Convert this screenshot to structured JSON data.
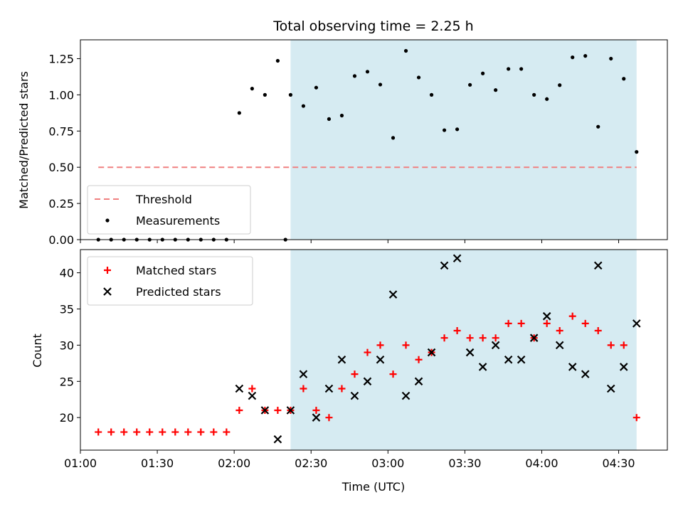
{
  "chart_data": {
    "type": "scatter",
    "title": "Total observing time = 2.25 h",
    "xlabel": "Time (UTC)",
    "x_ticks": [
      "01:00",
      "01:30",
      "02:00",
      "02:30",
      "03:00",
      "03:30",
      "04:00",
      "04:30"
    ],
    "x_tick_minutes": [
      60,
      90,
      120,
      150,
      180,
      210,
      240,
      270
    ],
    "xlim_minutes": [
      60,
      289
    ],
    "shaded_window_minutes": [
      142,
      277
    ],
    "shade_color": "#add8e6",
    "panels": [
      {
        "ylabel": "Matched/Predicted stars",
        "ylim": [
          0,
          1.38
        ],
        "y_ticks": [
          "0.00",
          "0.25",
          "0.50",
          "0.75",
          "1.00",
          "1.25"
        ],
        "y_tick_values": [
          0,
          0.25,
          0.5,
          0.75,
          1.0,
          1.25
        ],
        "legend": {
          "position": "lower-left"
        },
        "threshold": {
          "name": "Threshold",
          "value": 0.5,
          "x_range_minutes": [
            67,
            277
          ],
          "color": "#f08080"
        },
        "series": [
          {
            "name": "Measurements",
            "marker": "dot",
            "color": "#000000",
            "x": [
              67,
              72,
              77,
              82,
              87,
              92,
              97,
              102,
              107,
              112,
              117,
              122,
              127,
              132,
              137,
              140,
              142,
              147,
              152,
              157,
              162,
              167,
              172,
              177,
              182,
              187,
              192,
              197,
              202,
              207,
              212,
              217,
              222,
              227,
              232,
              237,
              242,
              247,
              252,
              257,
              262,
              267,
              272,
              277
            ],
            "y": [
              0,
              0,
              0,
              0,
              0,
              0,
              0,
              0,
              0,
              0,
              0,
              0.875,
              1.043,
              1.0,
              1.235,
              0,
              1.0,
              0.923,
              1.05,
              0.833,
              0.857,
              1.13,
              1.16,
              1.071,
              0.703,
              1.304,
              1.12,
              1.0,
              0.756,
              0.762,
              1.069,
              1.148,
              1.033,
              1.179,
              1.179,
              1.0,
              0.971,
              1.067,
              1.259,
              1.269,
              0.78,
              1.25,
              1.111,
              0.606
            ]
          }
        ]
      },
      {
        "ylabel": "Count",
        "ylim": [
          15.5,
          43.2
        ],
        "y_ticks": [
          "20",
          "25",
          "30",
          "35",
          "40"
        ],
        "y_tick_values": [
          20,
          25,
          30,
          35,
          40
        ],
        "legend": {
          "position": "upper-left"
        },
        "series": [
          {
            "name": "Matched stars",
            "marker": "plus",
            "color": "#ff0000",
            "x": [
              67,
              72,
              77,
              82,
              87,
              92,
              97,
              102,
              107,
              112,
              117,
              122,
              127,
              132,
              137,
              142,
              147,
              152,
              157,
              162,
              167,
              172,
              177,
              182,
              187,
              192,
              197,
              202,
              207,
              212,
              217,
              222,
              227,
              232,
              237,
              242,
              247,
              252,
              257,
              262,
              267,
              272,
              277
            ],
            "y": [
              18,
              18,
              18,
              18,
              18,
              18,
              18,
              18,
              18,
              18,
              18,
              21,
              24,
              21,
              21,
              21,
              24,
              21,
              20,
              24,
              26,
              29,
              30,
              26,
              30,
              28,
              29,
              31,
              32,
              31,
              31,
              31,
              33,
              33,
              31,
              33,
              32,
              34,
              33,
              32,
              30,
              30,
              20
            ]
          },
          {
            "name": "Predicted stars",
            "marker": "x",
            "color": "#000000",
            "x": [
              122,
              127,
              132,
              137,
              142,
              147,
              152,
              157,
              162,
              167,
              172,
              177,
              182,
              187,
              192,
              197,
              202,
              207,
              212,
              217,
              222,
              227,
              232,
              237,
              242,
              247,
              252,
              257,
              262,
              267,
              272,
              277
            ],
            "y": [
              24,
              23,
              21,
              17,
              21,
              26,
              20,
              24,
              28,
              23,
              25,
              28,
              37,
              23,
              25,
              29,
              41,
              42,
              29,
              27,
              30,
              28,
              28,
              31,
              34,
              30,
              27,
              26,
              41,
              24,
              27,
              33
            ]
          }
        ]
      }
    ]
  }
}
